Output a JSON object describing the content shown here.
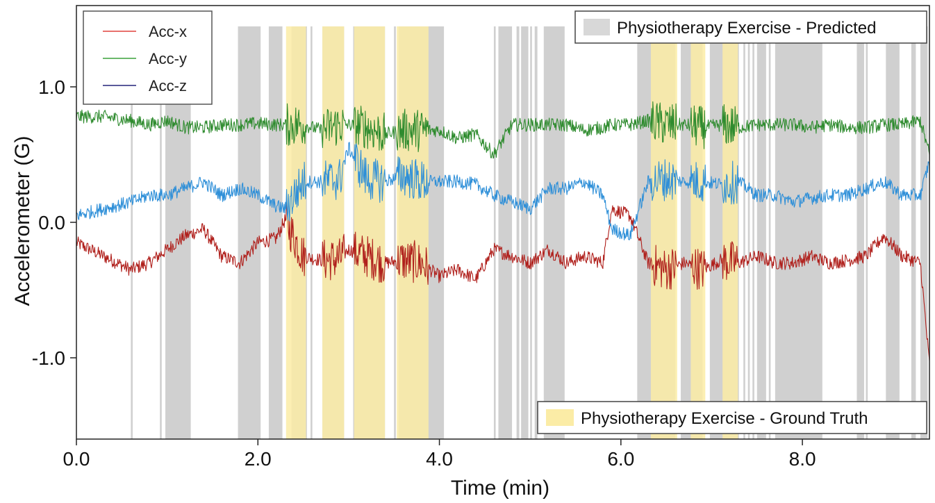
{
  "chart_data": {
    "type": "line",
    "xlabel": "Time (min)",
    "ylabel": "Accelerometer (G)",
    "xlim": [
      0.0,
      9.4
    ],
    "ylim": [
      -1.6,
      1.6
    ],
    "x_ticks": [
      "0.0",
      "2.0",
      "4.0",
      "6.0",
      "8.0"
    ],
    "x_tick_values": [
      0,
      2,
      4,
      6,
      8
    ],
    "y_ticks": [
      "1.0",
      "0.0",
      "-1.0"
    ],
    "y_tick_values": [
      1.0,
      0.0,
      -1.0
    ],
    "grid": false,
    "legend_placement": "top-left",
    "series": [
      {
        "name": "Acc-x",
        "legend_color": "#e0403c",
        "color": "#b0201c",
        "x": [
          0.0,
          0.3,
          0.6,
          0.8,
          1.0,
          1.2,
          1.4,
          1.6,
          1.8,
          2.0,
          2.2,
          2.3,
          2.5,
          2.7,
          2.9,
          3.0,
          3.2,
          3.4,
          3.6,
          3.8,
          4.0,
          4.2,
          4.4,
          4.6,
          4.8,
          5.0,
          5.2,
          5.4,
          5.6,
          5.8,
          5.9,
          6.1,
          6.3,
          6.5,
          6.7,
          6.9,
          7.1,
          7.3,
          7.5,
          7.7,
          7.9,
          8.1,
          8.3,
          8.5,
          8.7,
          8.9,
          9.1,
          9.3,
          9.4
        ],
        "y": [
          -0.15,
          -0.25,
          -0.35,
          -0.3,
          -0.2,
          -0.1,
          -0.05,
          -0.25,
          -0.3,
          -0.15,
          -0.12,
          0.02,
          -0.25,
          -0.28,
          -0.27,
          -0.2,
          -0.25,
          -0.3,
          -0.28,
          -0.3,
          -0.4,
          -0.35,
          -0.42,
          -0.2,
          -0.25,
          -0.3,
          -0.2,
          -0.3,
          -0.25,
          -0.3,
          0.1,
          0.05,
          -0.3,
          -0.35,
          -0.3,
          -0.35,
          -0.28,
          -0.3,
          -0.25,
          -0.3,
          -0.3,
          -0.25,
          -0.3,
          -0.28,
          -0.25,
          -0.1,
          -0.25,
          -0.3,
          -1.05
        ]
      },
      {
        "name": "Acc-y",
        "legend_color": "#3aa03a",
        "color": "#2e8b2e",
        "x": [
          0.0,
          0.3,
          0.6,
          0.8,
          1.0,
          1.2,
          1.4,
          1.6,
          1.8,
          2.0,
          2.2,
          2.3,
          2.5,
          2.7,
          2.9,
          3.0,
          3.2,
          3.4,
          3.6,
          3.8,
          4.0,
          4.2,
          4.4,
          4.6,
          4.8,
          5.0,
          5.2,
          5.4,
          5.6,
          5.8,
          5.9,
          6.1,
          6.3,
          6.5,
          6.7,
          6.9,
          7.1,
          7.3,
          7.5,
          7.7,
          7.9,
          8.1,
          8.3,
          8.5,
          8.7,
          8.9,
          9.1,
          9.3,
          9.4
        ],
        "y": [
          0.78,
          0.78,
          0.75,
          0.72,
          0.75,
          0.7,
          0.7,
          0.72,
          0.72,
          0.73,
          0.72,
          0.72,
          0.72,
          0.68,
          0.72,
          0.72,
          0.7,
          0.65,
          0.68,
          0.68,
          0.68,
          0.62,
          0.65,
          0.5,
          0.72,
          0.72,
          0.72,
          0.72,
          0.68,
          0.7,
          0.72,
          0.72,
          0.75,
          0.72,
          0.72,
          0.7,
          0.72,
          0.7,
          0.72,
          0.72,
          0.72,
          0.7,
          0.72,
          0.7,
          0.7,
          0.72,
          0.72,
          0.75,
          0.5
        ]
      },
      {
        "name": "Acc-z",
        "legend_color": "#23237a",
        "color": "#2e8fd8",
        "x": [
          0.0,
          0.3,
          0.6,
          0.8,
          1.0,
          1.2,
          1.4,
          1.6,
          1.8,
          2.0,
          2.2,
          2.3,
          2.5,
          2.7,
          2.9,
          3.0,
          3.2,
          3.4,
          3.6,
          3.8,
          4.0,
          4.2,
          4.4,
          4.6,
          4.8,
          5.0,
          5.2,
          5.4,
          5.6,
          5.8,
          5.9,
          6.1,
          6.3,
          6.5,
          6.7,
          6.9,
          7.1,
          7.3,
          7.5,
          7.7,
          7.9,
          8.1,
          8.3,
          8.5,
          8.7,
          8.9,
          9.1,
          9.3,
          9.4
        ],
        "y": [
          0.05,
          0.1,
          0.15,
          0.2,
          0.2,
          0.25,
          0.3,
          0.2,
          0.25,
          0.2,
          0.12,
          0.1,
          0.3,
          0.3,
          0.32,
          0.55,
          0.32,
          0.3,
          0.35,
          0.3,
          0.3,
          0.3,
          0.28,
          0.2,
          0.15,
          0.1,
          0.25,
          0.25,
          0.3,
          0.2,
          -0.05,
          -0.1,
          0.3,
          0.32,
          0.3,
          0.3,
          0.28,
          0.3,
          0.2,
          0.2,
          0.15,
          0.18,
          0.2,
          0.2,
          0.25,
          0.3,
          0.2,
          0.2,
          0.45
        ]
      }
    ],
    "regions": [
      {
        "name": "Physiotherapy Exercise - Predicted",
        "color": "#c8c8c8",
        "intervals": [
          [
            0.6,
            0.62
          ],
          [
            0.92,
            0.94
          ],
          [
            0.98,
            1.26
          ],
          [
            1.78,
            2.03
          ],
          [
            2.12,
            2.27
          ],
          [
            2.37,
            2.54
          ],
          [
            2.58,
            2.6
          ],
          [
            2.71,
            2.95
          ],
          [
            3.05,
            3.4
          ],
          [
            3.5,
            3.52
          ],
          [
            3.55,
            4.05
          ],
          [
            4.6,
            4.62
          ],
          [
            4.65,
            4.8
          ],
          [
            4.85,
            4.88
          ],
          [
            4.9,
            4.98
          ],
          [
            5.0,
            5.02
          ],
          [
            5.05,
            5.08
          ],
          [
            5.15,
            5.38
          ],
          [
            6.18,
            6.6
          ],
          [
            6.66,
            6.9
          ],
          [
            6.98,
            7.3
          ],
          [
            7.35,
            7.37
          ],
          [
            7.4,
            7.42
          ],
          [
            7.45,
            7.47
          ],
          [
            7.5,
            7.6
          ],
          [
            7.63,
            7.65
          ],
          [
            7.7,
            8.22
          ],
          [
            8.6,
            8.68
          ],
          [
            8.7,
            8.72
          ],
          [
            8.92,
            9.07
          ],
          [
            9.2,
            9.25
          ],
          [
            9.3,
            9.38
          ]
        ]
      },
      {
        "name": "Physiotherapy Exercise - Ground Truth",
        "color": "#fbeca6",
        "intervals": [
          [
            2.31,
            2.53
          ],
          [
            2.71,
            2.95
          ],
          [
            3.06,
            3.4
          ],
          [
            3.53,
            3.88
          ],
          [
            6.33,
            6.62
          ],
          [
            6.77,
            6.93
          ],
          [
            7.12,
            7.29
          ]
        ]
      }
    ]
  }
}
